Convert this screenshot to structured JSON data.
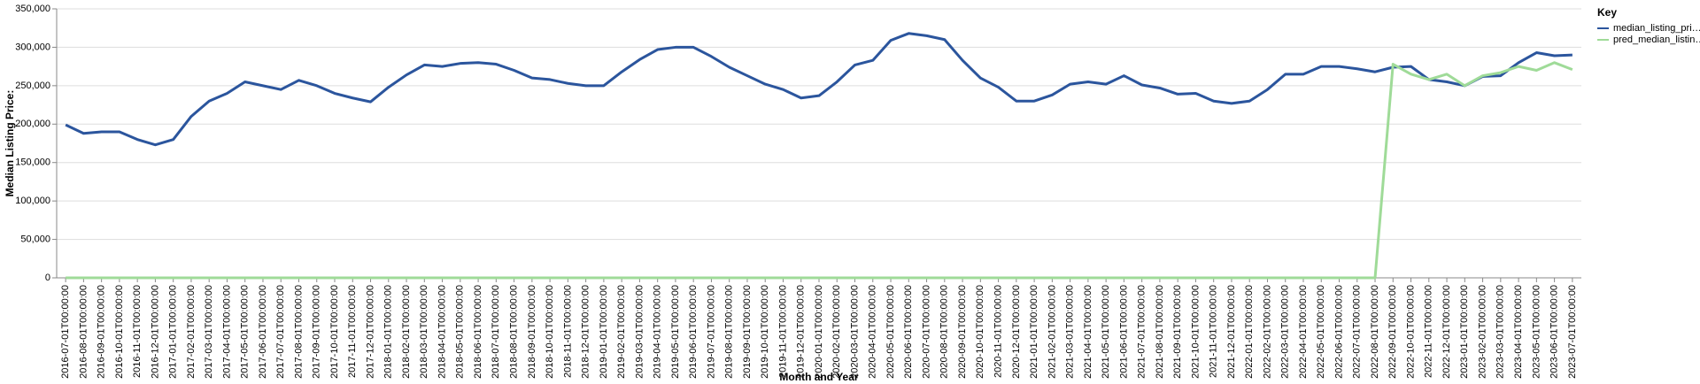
{
  "chart_data": {
    "type": "line",
    "x_label": "Month and Year",
    "y_label": "Median Listing Price:",
    "legend_title": "Key",
    "legend_position": "right",
    "grid": true,
    "categories": [
      "2016-07-01T00:00:00",
      "2016-08-01T00:00:00",
      "2016-09-01T00:00:00",
      "2016-10-01T00:00:00",
      "2016-11-01T00:00:00",
      "2016-12-01T00:00:00",
      "2017-01-01T00:00:00",
      "2017-02-01T00:00:00",
      "2017-03-01T00:00:00",
      "2017-04-01T00:00:00",
      "2017-05-01T00:00:00",
      "2017-06-01T00:00:00",
      "2017-07-01T00:00:00",
      "2017-08-01T00:00:00",
      "2017-09-01T00:00:00",
      "2017-10-01T00:00:00",
      "2017-11-01T00:00:00",
      "2017-12-01T00:00:00",
      "2018-01-01T00:00:00",
      "2018-02-01T00:00:00",
      "2018-03-01T00:00:00",
      "2018-04-01T00:00:00",
      "2018-05-01T00:00:00",
      "2018-06-01T00:00:00",
      "2018-07-01T00:00:00",
      "2018-08-01T00:00:00",
      "2018-09-01T00:00:00",
      "2018-10-01T00:00:00",
      "2018-11-01T00:00:00",
      "2018-12-01T00:00:00",
      "2019-01-01T00:00:00",
      "2019-02-01T00:00:00",
      "2019-03-01T00:00:00",
      "2019-04-01T00:00:00",
      "2019-05-01T00:00:00",
      "2019-06-01T00:00:00",
      "2019-07-01T00:00:00",
      "2019-08-01T00:00:00",
      "2019-09-01T00:00:00",
      "2019-10-01T00:00:00",
      "2019-11-01T00:00:00",
      "2019-12-01T00:00:00",
      "2020-01-01T00:00:00",
      "2020-02-01T00:00:00",
      "2020-03-01T00:00:00",
      "2020-04-01T00:00:00",
      "2020-05-01T00:00:00",
      "2020-06-01T00:00:00",
      "2020-07-01T00:00:00",
      "2020-08-01T00:00:00",
      "2020-09-01T00:00:00",
      "2020-10-01T00:00:00",
      "2020-11-01T00:00:00",
      "2020-12-01T00:00:00",
      "2021-01-01T00:00:00",
      "2021-02-01T00:00:00",
      "2021-03-01T00:00:00",
      "2021-04-01T00:00:00",
      "2021-05-01T00:00:00",
      "2021-06-01T00:00:00",
      "2021-07-01T00:00:00",
      "2021-08-01T00:00:00",
      "2021-09-01T00:00:00",
      "2021-10-01T00:00:00",
      "2021-11-01T00:00:00",
      "2021-12-01T00:00:00",
      "2022-01-01T00:00:00",
      "2022-02-01T00:00:00",
      "2022-03-01T00:00:00",
      "2022-04-01T00:00:00",
      "2022-05-01T00:00:00",
      "2022-06-01T00:00:00",
      "2022-07-01T00:00:00",
      "2022-08-01T00:00:00",
      "2022-09-01T00:00:00",
      "2022-10-01T00:00:00",
      "2022-11-01T00:00:00",
      "2022-12-01T00:00:00",
      "2023-01-01T00:00:00",
      "2023-02-01T00:00:00",
      "2023-03-01T00:00:00",
      "2023-04-01T00:00:00",
      "2023-05-01T00:00:00",
      "2023-06-01T00:00:00",
      "2023-07-01T00:00:00"
    ],
    "series": [
      {
        "name": "median_listing_pri…",
        "color": "#2b559d",
        "values": [
          199000,
          188000,
          190000,
          190000,
          180000,
          173000,
          180000,
          210000,
          230000,
          240000,
          255000,
          250000,
          245000,
          257000,
          250000,
          240000,
          234000,
          229000,
          248000,
          264000,
          277000,
          275000,
          279000,
          280000,
          278000,
          270000,
          260000,
          258000,
          253000,
          250000,
          250000,
          268000,
          284000,
          297000,
          300000,
          300000,
          288000,
          274000,
          263000,
          252000,
          245000,
          234000,
          237000,
          255000,
          277000,
          283000,
          309000,
          318000,
          315000,
          310000,
          283000,
          260000,
          248000,
          230000,
          230000,
          238000,
          252000,
          255000,
          252000,
          263000,
          251000,
          247000,
          239000,
          240000,
          230000,
          227000,
          230000,
          245000,
          265000,
          265000,
          275000,
          275000,
          272000,
          268000,
          274000,
          275000,
          258000,
          255000,
          250000,
          262000,
          263000,
          280000,
          293000,
          289000,
          290000
        ]
      },
      {
        "name": "pred_median_listin…",
        "color": "#9fdb98",
        "values": [
          0,
          0,
          0,
          0,
          0,
          0,
          0,
          0,
          0,
          0,
          0,
          0,
          0,
          0,
          0,
          0,
          0,
          0,
          0,
          0,
          0,
          0,
          0,
          0,
          0,
          0,
          0,
          0,
          0,
          0,
          0,
          0,
          0,
          0,
          0,
          0,
          0,
          0,
          0,
          0,
          0,
          0,
          0,
          0,
          0,
          0,
          0,
          0,
          0,
          0,
          0,
          0,
          0,
          0,
          0,
          0,
          0,
          0,
          0,
          0,
          0,
          0,
          0,
          0,
          0,
          0,
          0,
          0,
          0,
          0,
          0,
          0,
          0,
          0,
          278000,
          265000,
          258000,
          265000,
          250000,
          263000,
          267000,
          275000,
          270000,
          280000,
          271000
        ]
      }
    ],
    "ylim": [
      0,
      350000
    ],
    "yticks": [
      0,
      {
        "value": 50000,
        "label": "50,000"
      },
      {
        "value": 100000,
        "label": "100,000"
      },
      {
        "value": 150000,
        "label": "150,000"
      },
      {
        "value": 200000,
        "label": "200,000"
      },
      {
        "value": 250000,
        "label": "250,000"
      },
      {
        "value": 300000,
        "label": "300,000"
      },
      {
        "value": 350000,
        "label": "350,000"
      }
    ]
  }
}
